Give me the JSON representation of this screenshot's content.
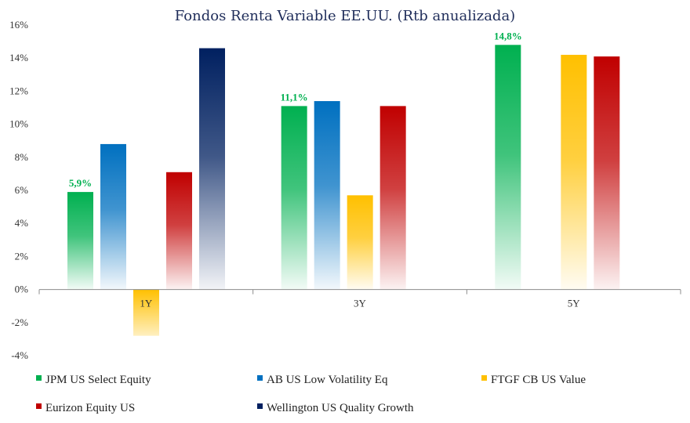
{
  "chart_data": {
    "type": "bar",
    "title": "Fondos Renta Variable EE.UU. (Rtb anualizada)",
    "xlabel": "",
    "ylabel": "",
    "ylim": [
      -4,
      16
    ],
    "yticks": [
      -4,
      -2,
      0,
      2,
      4,
      6,
      8,
      10,
      12,
      14,
      16
    ],
    "ytick_labels": [
      "-4%",
      "-2%",
      "0%",
      "2%",
      "4%",
      "6%",
      "8%",
      "10%",
      "12%",
      "14%",
      "16%"
    ],
    "categories": [
      "1Y",
      "3Y",
      "5Y"
    ],
    "series": [
      {
        "name": "JPM US Select Equity",
        "color": "#00b050",
        "values": [
          5.9,
          11.1,
          14.8
        ]
      },
      {
        "name": "AB US Low Volatility Eq",
        "color": "#0070c0",
        "values": [
          8.8,
          11.4,
          null
        ]
      },
      {
        "name": "FTGF CB US Value",
        "color": "#ffc000",
        "values": [
          -2.8,
          5.7,
          14.2
        ]
      },
      {
        "name": "Eurizon Equity US",
        "color": "#c00000",
        "values": [
          7.1,
          11.1,
          14.1
        ]
      },
      {
        "name": "Wellington US Quality Growth",
        "color": "#002060",
        "values": [
          14.6,
          null,
          null
        ]
      }
    ],
    "data_labels": [
      {
        "text": "5,9%",
        "series": 0,
        "category": 0,
        "color": "#00b050"
      },
      {
        "text": "11,1%",
        "series": 0,
        "category": 1,
        "color": "#00b050"
      },
      {
        "text": "14,8%",
        "series": 0,
        "category": 2,
        "color": "#00b050"
      }
    ],
    "legend_position": "bottom",
    "grid": false
  }
}
